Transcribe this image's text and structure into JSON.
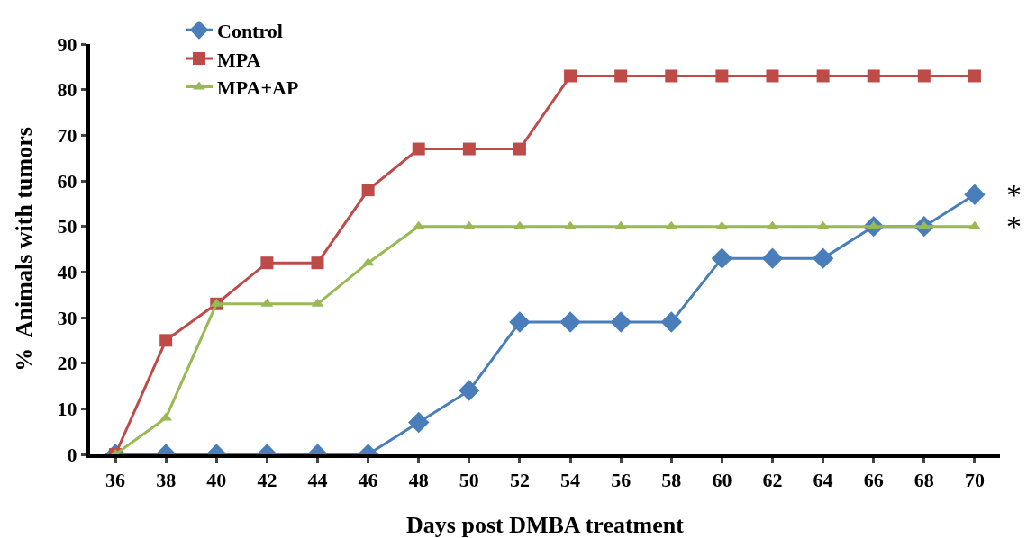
{
  "chart_data": {
    "type": "line",
    "xlabel": "Days post DMBA treatment",
    "ylabel": "%  Animals with tumors",
    "categories": [
      "36",
      "38",
      "40",
      "42",
      "44",
      "46",
      "48",
      "50",
      "52",
      "54",
      "56",
      "58",
      "60",
      "62",
      "64",
      "66",
      "68",
      "70"
    ],
    "series": [
      {
        "name": "Control",
        "color": "#4a7ebb",
        "marker": "diamond",
        "values": [
          0,
          0,
          0,
          0,
          0,
          0,
          7,
          14,
          29,
          29,
          29,
          29,
          43,
          43,
          43,
          50,
          50,
          57
        ]
      },
      {
        "name": "MPA",
        "color": "#be4b48",
        "marker": "square",
        "values": [
          0,
          25,
          33,
          42,
          42,
          58,
          67,
          67,
          67,
          83,
          83,
          83,
          83,
          83,
          83,
          83,
          83,
          83
        ]
      },
      {
        "name": "MPA+AP",
        "color": "#98b954",
        "marker": "triangle",
        "values": [
          0,
          8,
          33,
          33,
          33,
          42,
          50,
          50,
          50,
          50,
          50,
          50,
          50,
          50,
          50,
          50,
          50,
          50
        ]
      }
    ],
    "ylim": [
      0,
      90
    ],
    "yticks": [
      0,
      10,
      20,
      30,
      40,
      50,
      60,
      70,
      80,
      90
    ],
    "legend": "top left",
    "annotations": [
      {
        "text": "*",
        "x": "70",
        "y": 57
      },
      {
        "text": "*",
        "x": "70",
        "y": 50
      }
    ]
  }
}
